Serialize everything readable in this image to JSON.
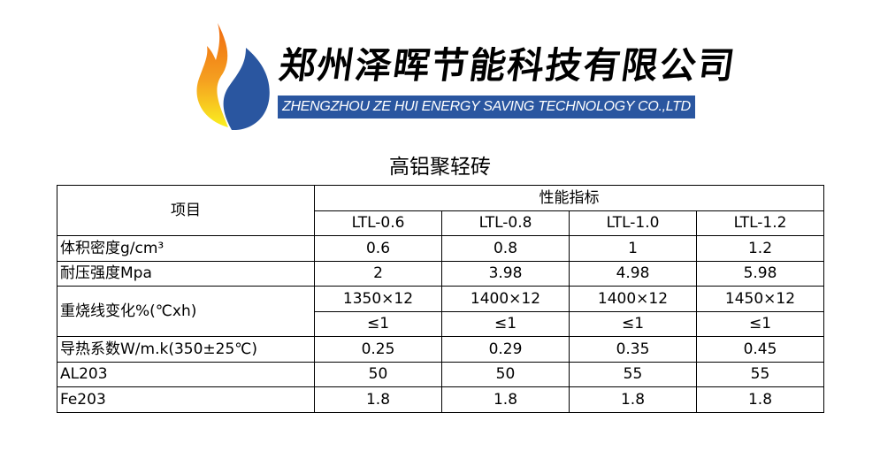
{
  "logo": {
    "company_cn": "郑州泽晖节能科技有限公司",
    "company_en": "ZHENGZHOU ZE HUI ENERGY SAVING TECHNOLOGY CO.,LTD",
    "colors": {
      "flame_orange": "#f07d10",
      "flame_yellow": "#f8d820",
      "drop_blue": "#2a56a0"
    }
  },
  "title": "高铝聚轻砖",
  "table": {
    "item_header": "项目",
    "group_header": "性能指标",
    "columns": [
      "LTL-0.6",
      "LTL-0.8",
      "LTL-1.0",
      "LTL-1.2"
    ],
    "rows": [
      {
        "label": "体积密度g/cm³",
        "values": [
          "0.6",
          "0.8",
          "1",
          "1.2"
        ]
      },
      {
        "label": "耐压强度Mpa",
        "values": [
          "2",
          "3.98",
          "4.98",
          "5.98"
        ]
      },
      {
        "label": "重烧线变化%(℃xh)",
        "values": [
          "1350×12",
          "1400×12",
          "1400×12",
          "1450×12"
        ],
        "values2": [
          "≤1",
          "≤1",
          "≤1",
          "≤1"
        ]
      },
      {
        "label": "导热系数W/m.k(350±25℃)",
        "values": [
          "0.25",
          "0.29",
          "0.35",
          "0.45"
        ]
      },
      {
        "label": "AL203",
        "values": [
          "50",
          "50",
          "55",
          "55"
        ]
      },
      {
        "label": "Fe203",
        "values": [
          "1.8",
          "1.8",
          "1.8",
          "1.8"
        ]
      }
    ]
  }
}
